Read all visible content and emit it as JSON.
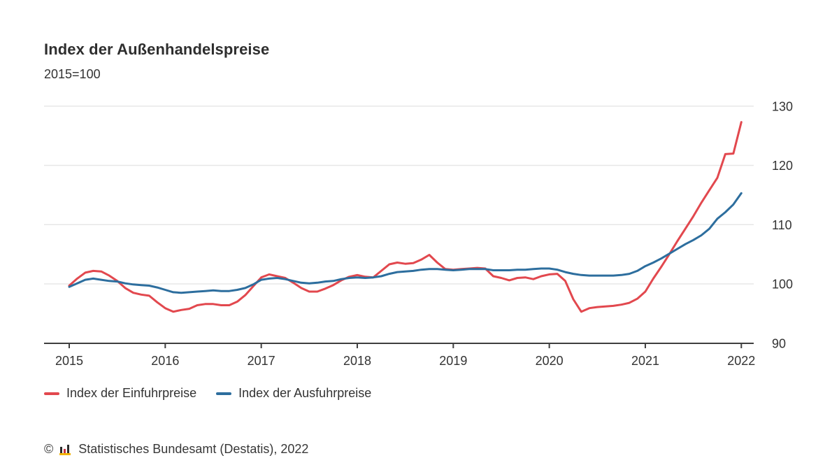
{
  "header": {
    "title": "Index der Außenhandelspreise",
    "subtitle": "2015=100"
  },
  "legend": [
    {
      "label": "Index der Einfuhrpreise",
      "color": "#e2484e"
    },
    {
      "label": "Index der Ausfuhrpreise",
      "color": "#2d6e9e"
    }
  ],
  "footer": {
    "copyright": "©",
    "source": "Statistisches Bundesamt (Destatis), 2022",
    "logo_icon": "destatis-bar-chart-icon",
    "logo_colors": {
      "bars": "#2b2b2b",
      "accent": "#c8323f",
      "base": "#f2b408"
    }
  },
  "chart_data": {
    "type": "line",
    "title": "Index der Außenhandelspreise",
    "subtitle": "2015=100",
    "x_frequency": "monthly",
    "x_start": "2015-01",
    "x_end": "2022-01",
    "x_tick_labels": [
      "2015",
      "2016",
      "2017",
      "2018",
      "2019",
      "2020",
      "2021",
      "2022"
    ],
    "y_ticks": [
      90,
      100,
      110,
      120,
      130
    ],
    "ylim": [
      90,
      131
    ],
    "grid": "horizontal",
    "grid_color": "#e7e7e7",
    "axis_color": "#3f3f3f",
    "legend_position": "bottom-left",
    "series": [
      {
        "name": "Index der Einfuhrpreise",
        "id": "einfuhrpreise-line",
        "color": "#e2484e",
        "values": [
          99.7,
          100.9,
          101.9,
          102.2,
          102.1,
          101.4,
          100.5,
          99.3,
          98.5,
          98.2,
          98.0,
          96.9,
          95.9,
          95.3,
          95.6,
          95.8,
          96.4,
          96.6,
          96.6,
          96.4,
          96.4,
          97.0,
          98.1,
          99.6,
          101.1,
          101.6,
          101.3,
          101.0,
          100.2,
          99.3,
          98.7,
          98.7,
          99.2,
          99.8,
          100.6,
          101.2,
          101.5,
          101.2,
          101.1,
          102.2,
          103.3,
          103.6,
          103.4,
          103.5,
          104.1,
          104.9,
          103.6,
          102.5,
          102.4,
          102.5,
          102.6,
          102.7,
          102.6,
          101.3,
          101.0,
          100.6,
          101.0,
          101.1,
          100.8,
          101.3,
          101.6,
          101.7,
          100.5,
          97.4,
          95.3,
          95.9,
          96.1,
          96.2,
          96.3,
          96.5,
          96.8,
          97.5,
          98.7,
          100.9,
          102.9,
          105.0,
          107.2,
          109.3,
          111.4,
          113.7,
          115.8,
          117.9,
          121.9,
          122.0,
          127.3
        ]
      },
      {
        "name": "Index der Ausfuhrpreise",
        "id": "ausfuhrpreise-line",
        "color": "#2d6e9e",
        "values": [
          99.5,
          100.1,
          100.7,
          100.9,
          100.7,
          100.5,
          100.4,
          100.1,
          99.9,
          99.8,
          99.7,
          99.4,
          99.0,
          98.6,
          98.5,
          98.6,
          98.7,
          98.8,
          98.9,
          98.8,
          98.8,
          99.0,
          99.3,
          99.9,
          100.7,
          100.9,
          101.0,
          100.8,
          100.5,
          100.2,
          100.1,
          100.2,
          100.4,
          100.5,
          100.8,
          101.0,
          101.1,
          101.0,
          101.1,
          101.3,
          101.7,
          102.0,
          102.1,
          102.2,
          102.4,
          102.5,
          102.5,
          102.4,
          102.3,
          102.4,
          102.5,
          102.5,
          102.5,
          102.3,
          102.3,
          102.3,
          102.4,
          102.4,
          102.5,
          102.6,
          102.6,
          102.4,
          102.0,
          101.7,
          101.5,
          101.4,
          101.4,
          101.4,
          101.4,
          101.5,
          101.7,
          102.2,
          103.0,
          103.6,
          104.3,
          105.1,
          105.9,
          106.7,
          107.4,
          108.2,
          109.3,
          111.0,
          112.1,
          113.4,
          115.3
        ]
      }
    ]
  }
}
